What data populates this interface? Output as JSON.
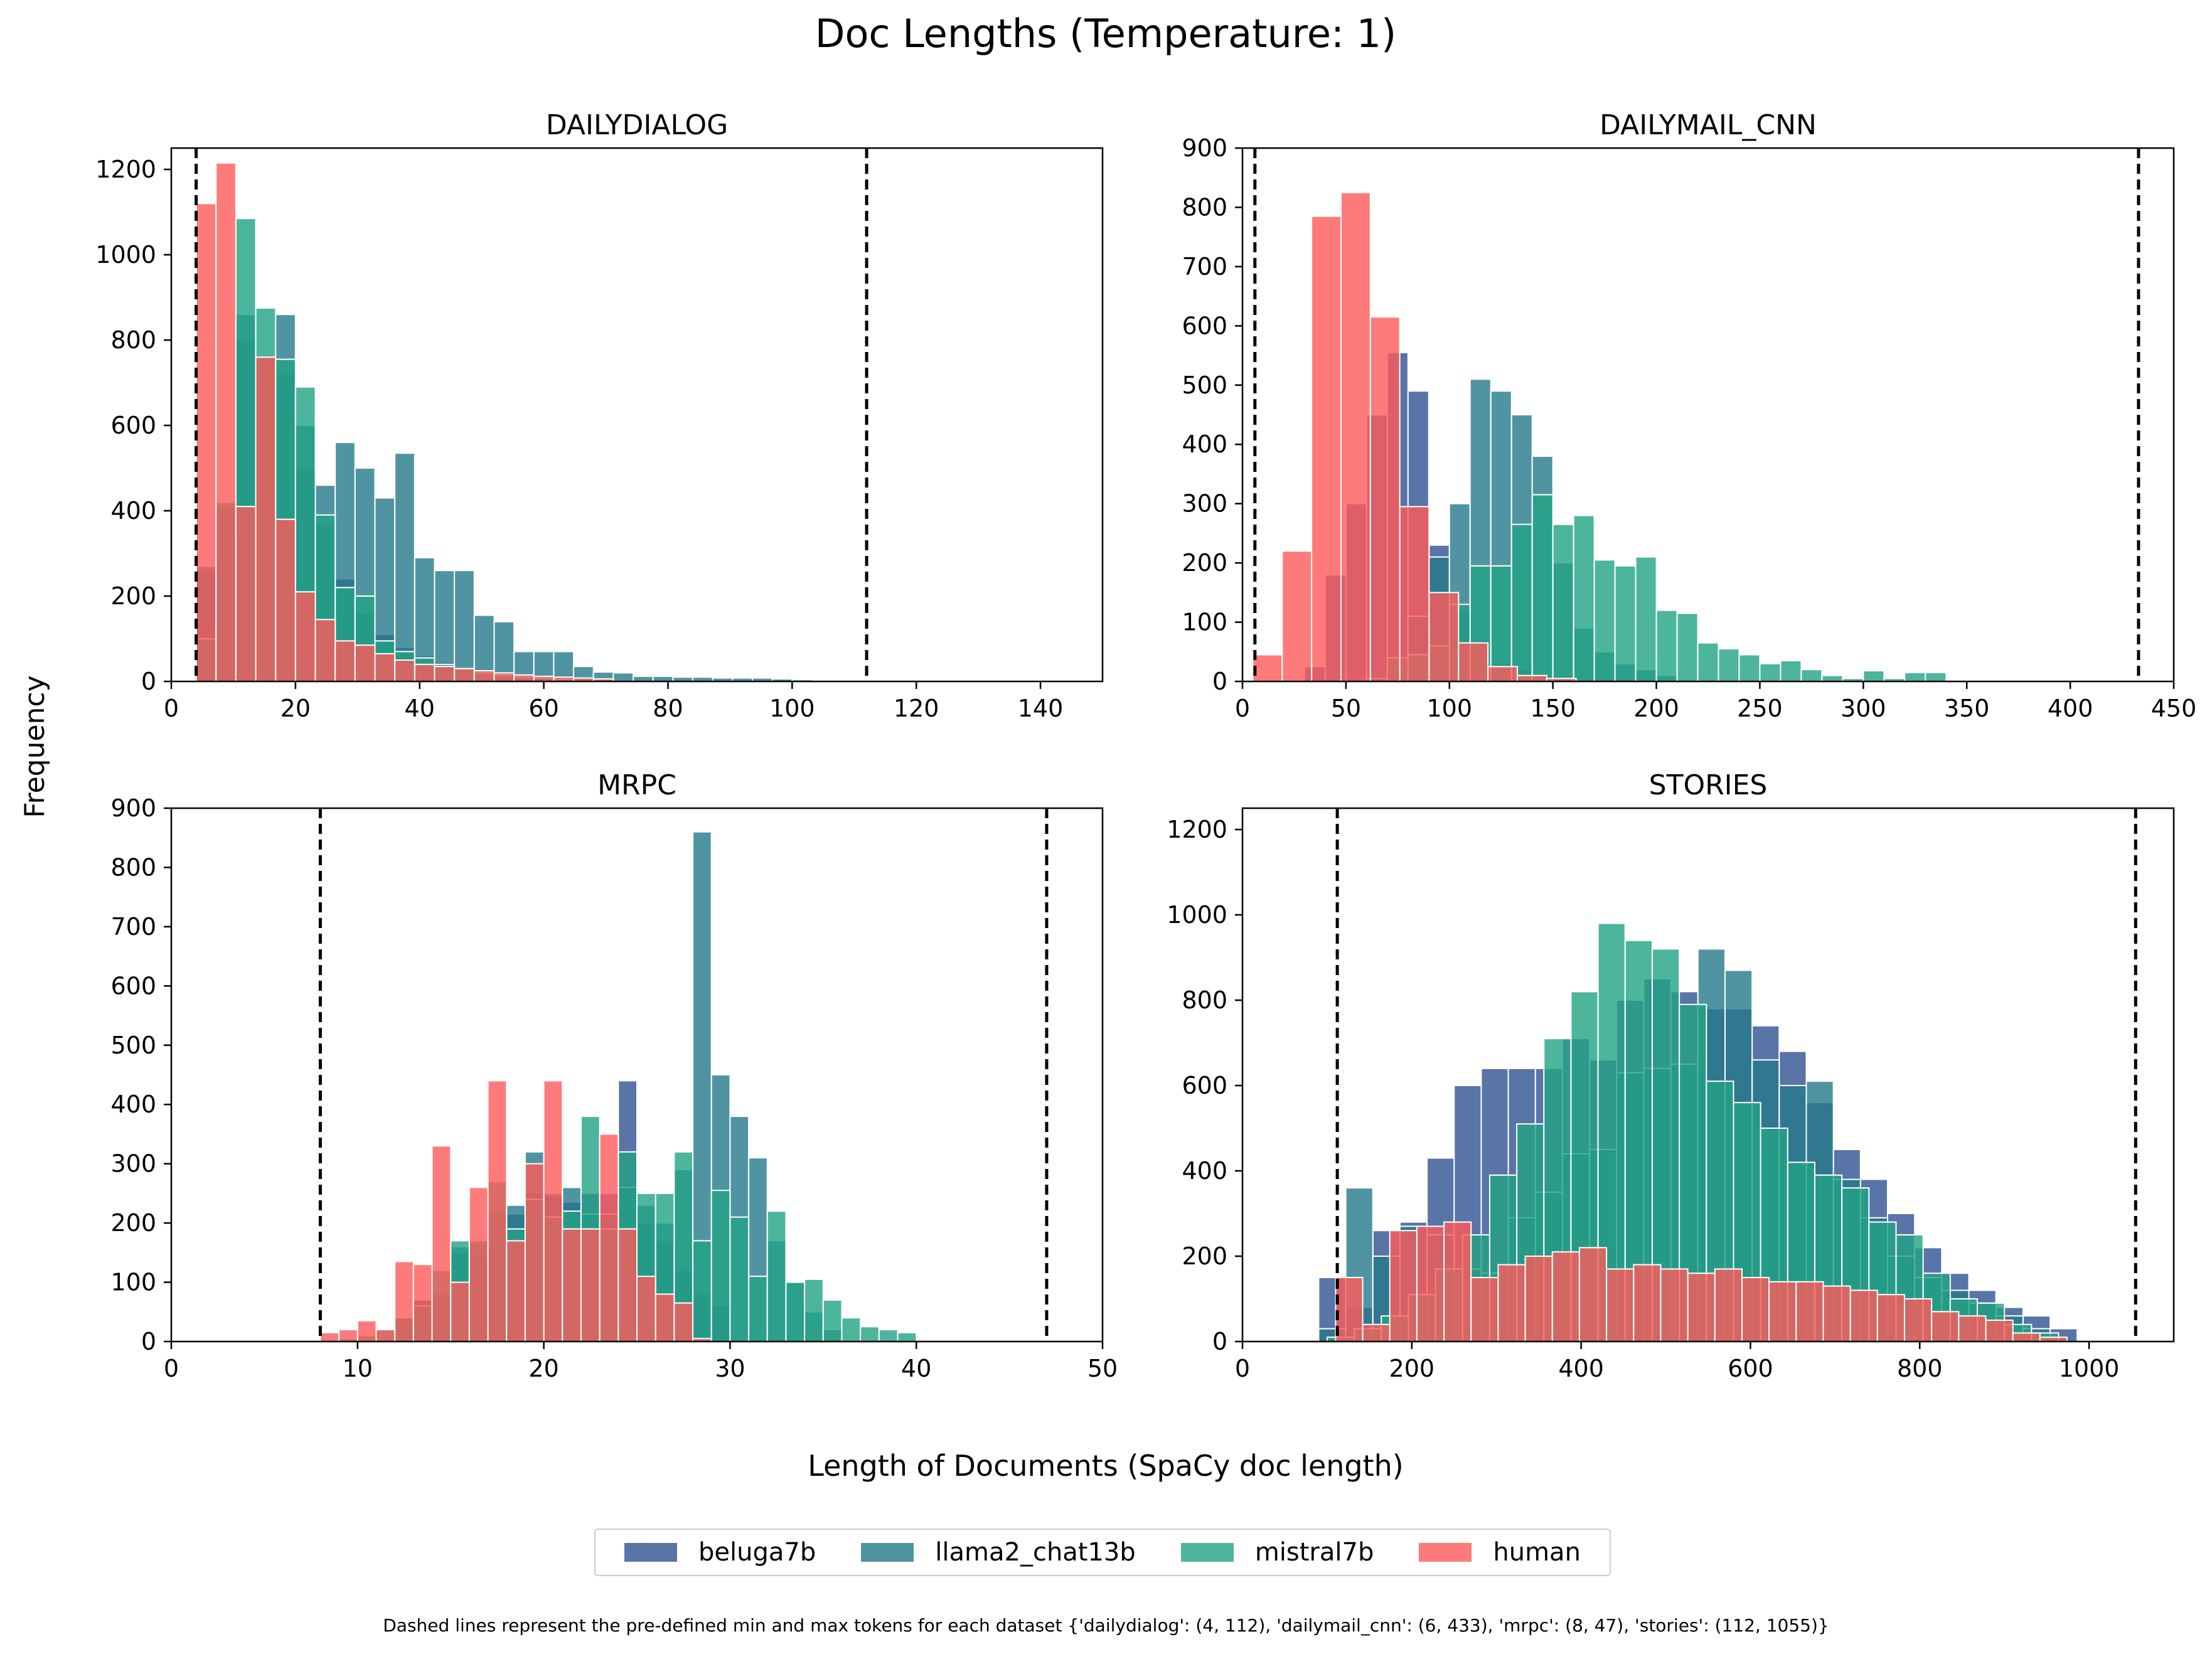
{
  "figure": {
    "title": "Doc Lengths (Temperature: 1)",
    "ylabel": "Frequency",
    "xlabel": "Length of Documents (SpaCy doc length)",
    "footnote": "Dashed lines represent the pre-defined min and max tokens for each dataset {'dailydialog': (4, 112), 'dailymail_cnn': (6, 433), 'mrpc': (8, 47), 'stories': (112, 1055)}"
  },
  "legend": [
    {
      "name": "beluga7b",
      "color": "#2f5190"
    },
    {
      "name": "llama2_chat13b",
      "color": "#26798a"
    },
    {
      "name": "mistral7b",
      "color": "#22a285"
    },
    {
      "name": "human",
      "color": "#ff5a5a"
    }
  ],
  "chart_data": [
    {
      "type": "bar",
      "title": "DAILYDIALOG",
      "xlim": [
        0,
        150
      ],
      "ylim": [
        0,
        1250
      ],
      "xticks": [
        0,
        20,
        40,
        60,
        80,
        100,
        120,
        140
      ],
      "yticks": [
        0,
        200,
        400,
        600,
        800,
        1000,
        1200
      ],
      "dashed_lines": [
        4,
        112
      ],
      "series": [
        {
          "name": "beluga7b",
          "x0": 4,
          "binwidth": 3.2,
          "values": [
            260,
            330,
            800,
            760,
            720,
            500,
            370,
            240,
            160,
            110,
            80,
            60,
            45,
            30,
            20,
            15,
            10,
            8,
            5,
            3
          ]
        },
        {
          "name": "llama2_chat13b",
          "x0": 4,
          "binwidth": 3.2,
          "values": [
            270,
            410,
            860,
            760,
            860,
            600,
            460,
            560,
            500,
            430,
            535,
            290,
            260,
            260,
            155,
            140,
            70,
            70,
            70,
            35,
            22,
            20,
            12,
            12,
            10,
            10,
            8,
            8,
            8,
            6,
            4
          ]
        },
        {
          "name": "mistral7b",
          "x0": 4,
          "binwidth": 3.2,
          "values": [
            100,
            420,
            1085,
            875,
            755,
            690,
            390,
            220,
            200,
            95,
            70,
            55,
            40,
            30,
            20,
            15,
            10,
            8,
            5
          ]
        },
        {
          "name": "human",
          "x0": 4,
          "binwidth": 3.2,
          "values": [
            1120,
            1215,
            410,
            760,
            380,
            210,
            145,
            95,
            85,
            65,
            50,
            40,
            35,
            30,
            25,
            20,
            15,
            12,
            10,
            8,
            6
          ]
        }
      ]
    },
    {
      "type": "bar",
      "title": "DAILYMAIL_CNN",
      "xlim": [
        0,
        450
      ],
      "ylim": [
        0,
        900
      ],
      "xticks": [
        0,
        50,
        100,
        150,
        200,
        250,
        300,
        350,
        400,
        450
      ],
      "yticks": [
        0,
        100,
        200,
        300,
        400,
        500,
        600,
        700,
        800,
        900
      ],
      "dashed_lines": [
        6,
        433
      ],
      "series": [
        {
          "name": "beluga7b",
          "x0": 30,
          "binwidth": 10,
          "values": [
            25,
            180,
            300,
            450,
            555,
            490,
            230,
            120,
            70,
            30,
            20,
            10,
            5
          ]
        },
        {
          "name": "llama2_chat13b",
          "x0": 60,
          "binwidth": 10,
          "values": [
            5,
            20,
            110,
            210,
            300,
            510,
            490,
            450,
            380,
            200,
            90,
            50,
            30,
            20,
            10
          ]
        },
        {
          "name": "mistral7b",
          "x0": 70,
          "binwidth": 10,
          "values": [
            40,
            45,
            60,
            130,
            195,
            195,
            265,
            315,
            265,
            280,
            205,
            195,
            210,
            120,
            115,
            65,
            55,
            45,
            30,
            35,
            20,
            10,
            5,
            18,
            5,
            15,
            15
          ]
        },
        {
          "name": "human",
          "x0": 5,
          "binwidth": 14.2,
          "values": [
            45,
            220,
            785,
            825,
            615,
            295,
            150,
            65,
            25,
            10,
            5
          ]
        }
      ]
    },
    {
      "type": "bar",
      "title": "MRPC",
      "xlim": [
        0,
        50
      ],
      "ylim": [
        0,
        900
      ],
      "xticks": [
        0,
        10,
        20,
        30,
        40,
        50
      ],
      "yticks": [
        0,
        100,
        200,
        300,
        400,
        500,
        600,
        700,
        800,
        900
      ],
      "dashed_lines": [
        8,
        47
      ],
      "series": [
        {
          "name": "beluga7b",
          "x0": 12,
          "binwidth": 1,
          "values": [
            35,
            70,
            80,
            150,
            165,
            210,
            215,
            250,
            245,
            235,
            250,
            250,
            440,
            200,
            170,
            120,
            80,
            60
          ]
        },
        {
          "name": "llama2_chat13b",
          "x0": 12,
          "binwidth": 1,
          "values": [
            40,
            70,
            80,
            160,
            145,
            220,
            230,
            320,
            250,
            260,
            215,
            215,
            260,
            230,
            200,
            290,
            860,
            450,
            380,
            310,
            170,
            100,
            50,
            20
          ]
        },
        {
          "name": "mistral7b",
          "x0": 9,
          "binwidth": 1,
          "values": [
            5,
            10,
            20,
            40,
            60,
            120,
            170,
            170,
            270,
            190,
            240,
            210,
            220,
            380,
            190,
            320,
            250,
            250,
            320,
            170,
            255,
            210,
            110,
            220,
            100,
            105,
            70,
            40,
            25,
            20,
            15
          ]
        },
        {
          "name": "human",
          "x0": 8,
          "binwidth": 1,
          "values": [
            15,
            20,
            35,
            20,
            135,
            130,
            330,
            100,
            260,
            440,
            170,
            300,
            440,
            190,
            190,
            350,
            190,
            110,
            80,
            65,
            5
          ]
        }
      ]
    },
    {
      "type": "bar",
      "title": "STORIES",
      "xlim": [
        0,
        1100
      ],
      "ylim": [
        0,
        1250
      ],
      "xticks": [
        0,
        200,
        400,
        600,
        800,
        1000
      ],
      "yticks": [
        0,
        200,
        400,
        600,
        800,
        1000,
        1200
      ],
      "dashed_lines": [
        112,
        1055
      ],
      "series": [
        {
          "name": "beluga7b",
          "x0": 90,
          "binwidth": 32,
          "values": [
            150,
            80,
            260,
            280,
            430,
            600,
            640,
            640,
            640,
            710,
            660,
            800,
            850,
            820,
            780,
            780,
            740,
            680,
            560,
            450,
            380,
            300,
            220,
            160,
            120,
            80,
            60,
            30
          ]
        },
        {
          "name": "llama2_chat13b",
          "x0": 90,
          "binwidth": 32,
          "values": [
            30,
            360,
            200,
            270,
            250,
            170,
            160,
            290,
            350,
            440,
            450,
            630,
            640,
            650,
            920,
            870,
            660,
            600,
            610,
            380,
            290,
            200,
            150,
            120,
            90,
            60,
            30
          ]
        },
        {
          "name": "mistral7b",
          "x0": 100,
          "binwidth": 32,
          "values": [
            10,
            30,
            60,
            110,
            170,
            250,
            390,
            510,
            710,
            820,
            980,
            940,
            920,
            790,
            610,
            560,
            500,
            420,
            390,
            360,
            280,
            250,
            160,
            100,
            90,
            40,
            20
          ]
        },
        {
          "name": "human",
          "x0": 110,
          "binwidth": 32,
          "values": [
            150,
            40,
            260,
            270,
            280,
            150,
            180,
            200,
            210,
            220,
            170,
            180,
            170,
            160,
            170,
            150,
            140,
            140,
            130,
            120,
            110,
            100,
            70,
            60,
            50,
            20,
            10
          ]
        }
      ]
    }
  ]
}
